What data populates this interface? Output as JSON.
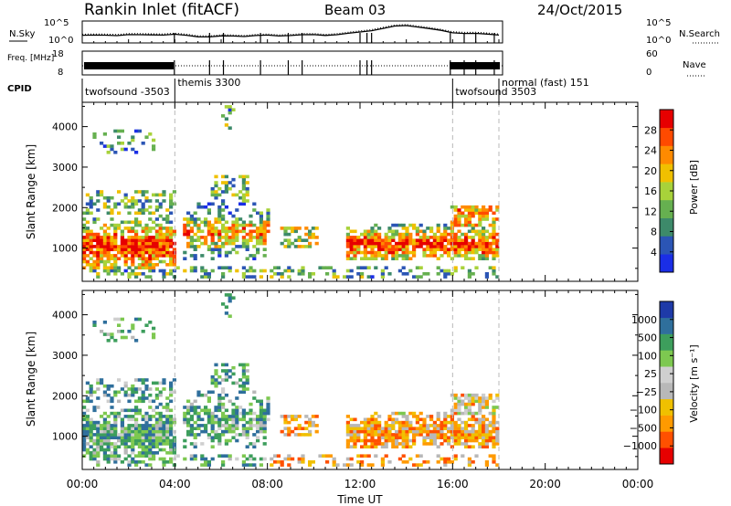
{
  "header": {
    "station": "Rankin Inlet (fitACF)",
    "beam": "Beam 03",
    "date": "24/Oct/2015"
  },
  "colors": {
    "power": [
      "#1a2ee6",
      "#2b55b5",
      "#3d8a6a",
      "#66b050",
      "#a8d23a",
      "#f0c000",
      "#ff8a00",
      "#ff4a00",
      "#e60000"
    ],
    "velocity": [
      "#e60000",
      "#ff5000",
      "#ff9a00",
      "#f0c000",
      "#b8b8b8",
      "#cfcfcf",
      "#7dc850",
      "#3d9e5c",
      "#2f6f9c",
      "#1e3aa8"
    ],
    "ground_scatter": "#a0a0a0"
  },
  "chart_data": [
    {
      "type": "line",
      "panel": "noise",
      "series": [
        {
          "name": "N.Sky",
          "axis": "left"
        },
        {
          "name": "N.Search",
          "axis": "right"
        }
      ],
      "left_ticks": [
        "10^5",
        "10^0"
      ],
      "right_ticks": [
        "10^5",
        "10^0"
      ],
      "ylabel_left": "N.Sky",
      "ylabel_right": "N.Search",
      "x_hours": [
        0,
        0.5,
        1,
        1.5,
        2,
        2.5,
        3,
        3.5,
        4,
        4.5,
        5,
        5.5,
        6,
        6.5,
        7,
        7.5,
        8,
        8.5,
        9,
        9.5,
        10,
        10.5,
        11,
        11.5,
        12,
        12.5,
        13,
        13.5,
        14,
        14.5,
        15,
        15.5,
        16,
        16.5,
        17,
        17.5,
        18
      ],
      "sky_level": [
        0.35,
        0.34,
        0.36,
        0.35,
        0.37,
        0.36,
        0.38,
        0.37,
        0.38,
        0.34,
        0.3,
        0.28,
        0.3,
        0.32,
        0.31,
        0.33,
        0.34,
        0.33,
        0.35,
        0.36,
        0.37,
        0.36,
        0.38,
        0.42,
        0.5,
        0.58,
        0.66,
        0.75,
        0.8,
        0.74,
        0.64,
        0.56,
        0.48,
        0.44,
        0.42,
        0.4,
        0.38
      ]
    },
    {
      "type": "line",
      "panel": "frequency",
      "left_ticks": [
        "18",
        "8"
      ],
      "right_ticks": [
        "60",
        "0"
      ],
      "ylabel_left": "Freq. [MHz]",
      "ylabel_right": "Nave"
    },
    {
      "type": "table",
      "panel": "cpid",
      "label": "CPID",
      "segments": [
        {
          "start_hour": 0,
          "label": "twofsound -3503"
        },
        {
          "start_hour": 4,
          "label": "themis 3300"
        },
        {
          "start_hour": 16,
          "label": "twofsound 3503"
        },
        {
          "start_hour": 18,
          "label": "normal (fast) 151"
        }
      ]
    },
    {
      "type": "heatmap",
      "panel": "power",
      "ylabel": "Slant Range [km]",
      "yticks": [
        1000,
        2000,
        3000,
        4000
      ],
      "ylim": [
        180,
        4600
      ],
      "xlim_hours": [
        0,
        24
      ],
      "colorbar_label": "Power [dB]",
      "colorbar_ticks": [
        4,
        8,
        12,
        16,
        20,
        24,
        28
      ],
      "zlim": [
        0,
        32
      ]
    },
    {
      "type": "heatmap",
      "panel": "velocity",
      "ylabel": "Slant Range [km]",
      "yticks": [
        1000,
        2000,
        3000,
        4000
      ],
      "ylim": [
        180,
        4600
      ],
      "xlim_hours": [
        0,
        24
      ],
      "colorbar_label": "Velocity [m s⁻¹]",
      "colorbar_ticks": [
        "1000",
        "500",
        "100",
        "25",
        "−25",
        "−100",
        "−500",
        "−1000"
      ]
    }
  ],
  "xaxis": {
    "label": "Time UT",
    "ticks": [
      "00:00",
      "04:00",
      "08:00",
      "12:00",
      "16:00",
      "20:00",
      "00:00"
    ]
  }
}
